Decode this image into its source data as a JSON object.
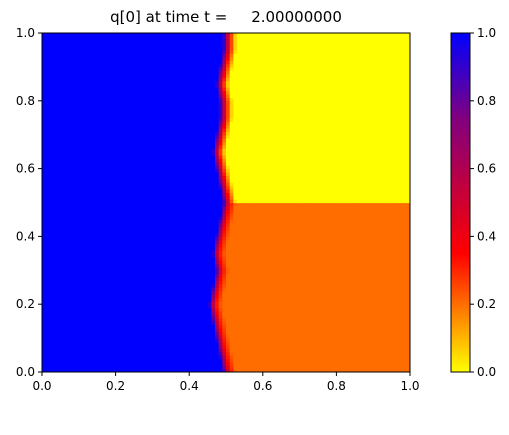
{
  "chart_data": {
    "type": "heatmap",
    "title": "q[0] at time t =     2.00000000",
    "xlabel": "",
    "ylabel": "",
    "xlim": [
      0.0,
      1.0
    ],
    "ylim": [
      0.0,
      1.0
    ],
    "x_ticks": [
      "0.0",
      "0.2",
      "0.4",
      "0.6",
      "0.8",
      "1.0"
    ],
    "y_ticks": [
      "0.0",
      "0.2",
      "0.4",
      "0.6",
      "0.8",
      "1.0"
    ],
    "colorbar": {
      "range": [
        0.0,
        1.0
      ],
      "ticks": [
        "0.0",
        "0.2",
        "0.4",
        "0.6",
        "0.8",
        "1.0"
      ],
      "colormap": [
        {
          "value": 0.0,
          "color": "#ffff00"
        },
        {
          "value": 0.35,
          "color": "#ff0000"
        },
        {
          "value": 0.75,
          "color": "#800080"
        },
        {
          "value": 1.0,
          "color": "#0000ff"
        }
      ]
    },
    "field": {
      "description_regions": [
        {
          "region": "x < ~0.5 (interface)",
          "value": 1.0
        },
        {
          "region": "x > 0.5, y > 0.5",
          "value": 0.0
        },
        {
          "region": "x > 0.5, y < 0.5",
          "value": 0.2
        }
      ],
      "interface_profile": [
        {
          "y": 0.0,
          "x": 0.51
        },
        {
          "y": 0.05,
          "x": 0.5
        },
        {
          "y": 0.1,
          "x": 0.49
        },
        {
          "y": 0.15,
          "x": 0.48
        },
        {
          "y": 0.2,
          "x": 0.47
        },
        {
          "y": 0.25,
          "x": 0.48
        },
        {
          "y": 0.3,
          "x": 0.49
        },
        {
          "y": 0.35,
          "x": 0.48
        },
        {
          "y": 0.4,
          "x": 0.49
        },
        {
          "y": 0.45,
          "x": 0.5
        },
        {
          "y": 0.5,
          "x": 0.51
        },
        {
          "y": 0.55,
          "x": 0.5
        },
        {
          "y": 0.6,
          "x": 0.49
        },
        {
          "y": 0.65,
          "x": 0.48
        },
        {
          "y": 0.7,
          "x": 0.49
        },
        {
          "y": 0.75,
          "x": 0.5
        },
        {
          "y": 0.8,
          "x": 0.5
        },
        {
          "y": 0.85,
          "x": 0.49
        },
        {
          "y": 0.9,
          "x": 0.5
        },
        {
          "y": 0.95,
          "x": 0.51
        },
        {
          "y": 1.0,
          "x": 0.51
        }
      ]
    }
  }
}
